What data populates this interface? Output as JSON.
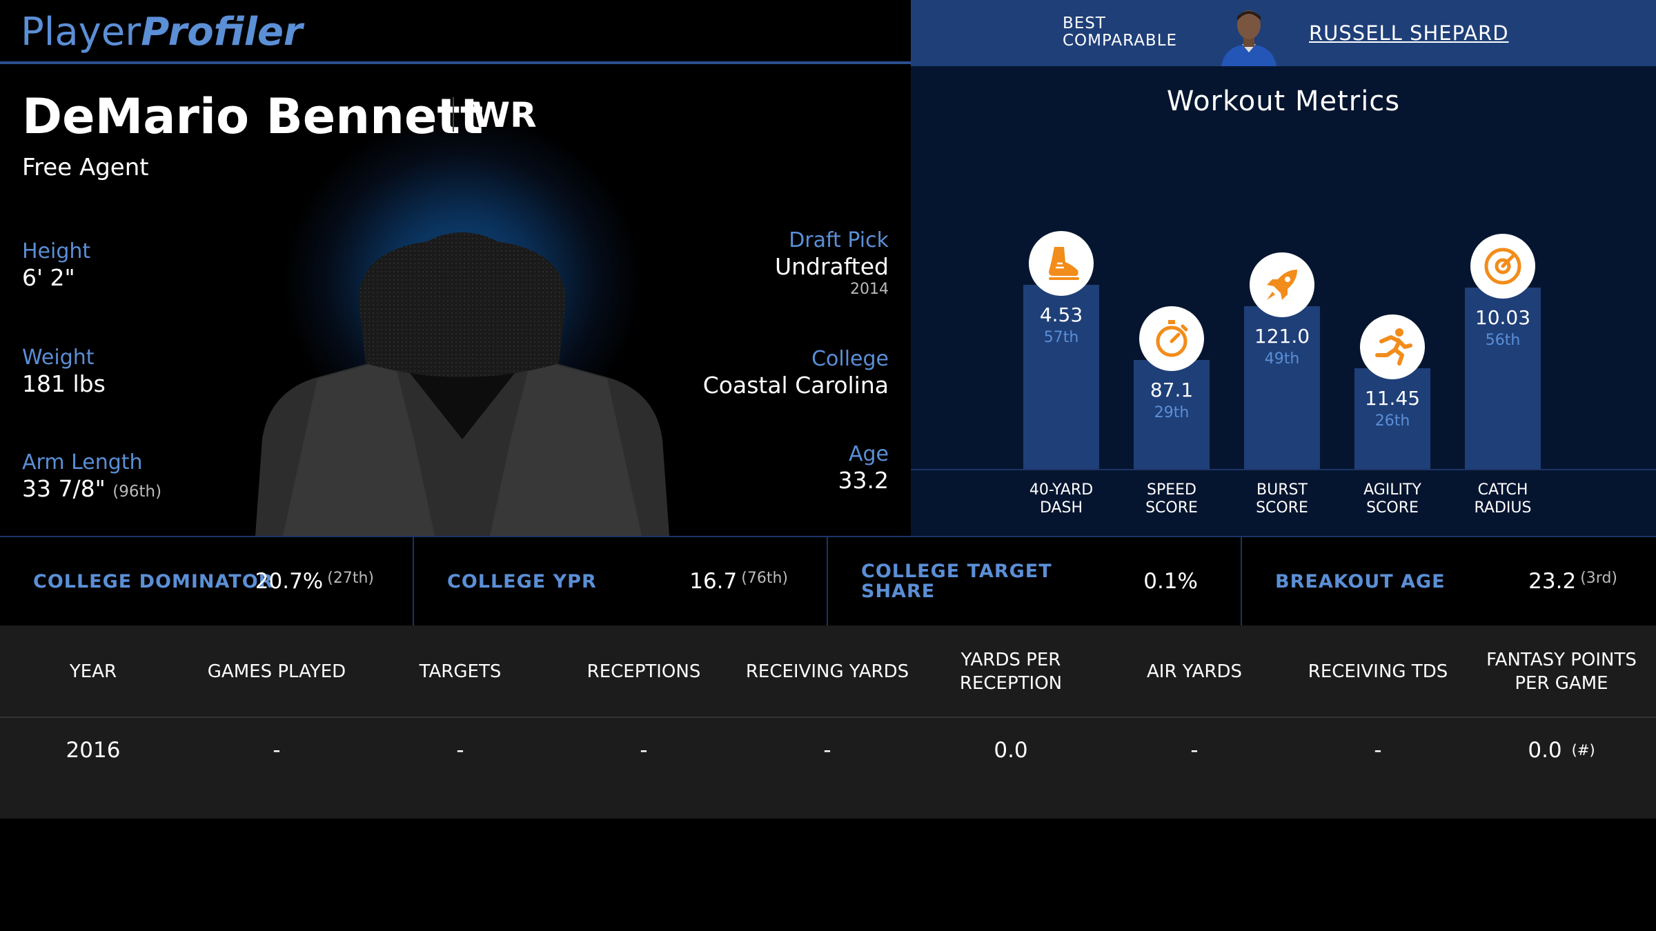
{
  "header": {
    "logo_part1": "Player",
    "logo_part2": "Profiler",
    "best_comparable_label": "Best Comparable",
    "best_comparable_name": "RUSSELL SHEPARD"
  },
  "player": {
    "name": "DeMario Bennett",
    "position": "WR",
    "team": "Free Agent",
    "height_label": "Height",
    "height": "6' 2\"",
    "weight_label": "Weight",
    "weight": "181 lbs",
    "arm_label": "Arm Length",
    "arm": "33 7/8\"",
    "arm_pct": "(96th)",
    "draft_label": "Draft Pick",
    "draft": "Undrafted",
    "draft_year": "2014",
    "college_label": "College",
    "college": "Coastal Carolina",
    "age_label": "Age",
    "age": "33.2"
  },
  "workout": {
    "title": "Workout Metrics",
    "metrics": [
      {
        "label": "40-Yard Dash",
        "value": "4.53",
        "percentile": "57th",
        "icon": "running-shoe-icon",
        "pct": 57
      },
      {
        "label": "Speed Score",
        "value": "87.1",
        "percentile": "29th",
        "icon": "stopwatch-icon",
        "pct": 29
      },
      {
        "label": "Burst Score",
        "value": "121.0",
        "percentile": "49th",
        "icon": "rocket-icon",
        "pct": 49
      },
      {
        "label": "Agility Score",
        "value": "11.45",
        "percentile": "26th",
        "icon": "runner-icon",
        "pct": 26
      },
      {
        "label": "Catch Radius",
        "value": "10.03",
        "percentile": "56th",
        "icon": "target-icon",
        "pct": 56
      }
    ]
  },
  "college_stats": [
    {
      "label": "College Dominator",
      "value": "20.7%",
      "percentile": "(27th)"
    },
    {
      "label": "College YPR",
      "value": "16.7",
      "percentile": "(76th)"
    },
    {
      "label": "College Target Share",
      "value": "0.1%",
      "percentile": ""
    },
    {
      "label": "Breakout Age",
      "value": "23.2",
      "percentile": "(3rd)"
    }
  ],
  "table": {
    "headers": [
      "Year",
      "Games Played",
      "Targets",
      "Receptions",
      "Receiving Yards",
      "Yards Per Reception",
      "Air Yards",
      "Receiving TDs",
      "Fantasy Points Per Game"
    ],
    "rows": [
      {
        "cells": [
          "2016",
          "-",
          "-",
          "-",
          "-",
          "0.0",
          "-",
          "-",
          "0.0"
        ],
        "note": "(#)"
      }
    ]
  },
  "colors": {
    "accent": "#5b8fd6",
    "bar": "#1f3f78",
    "icon": "#f28c1a"
  }
}
